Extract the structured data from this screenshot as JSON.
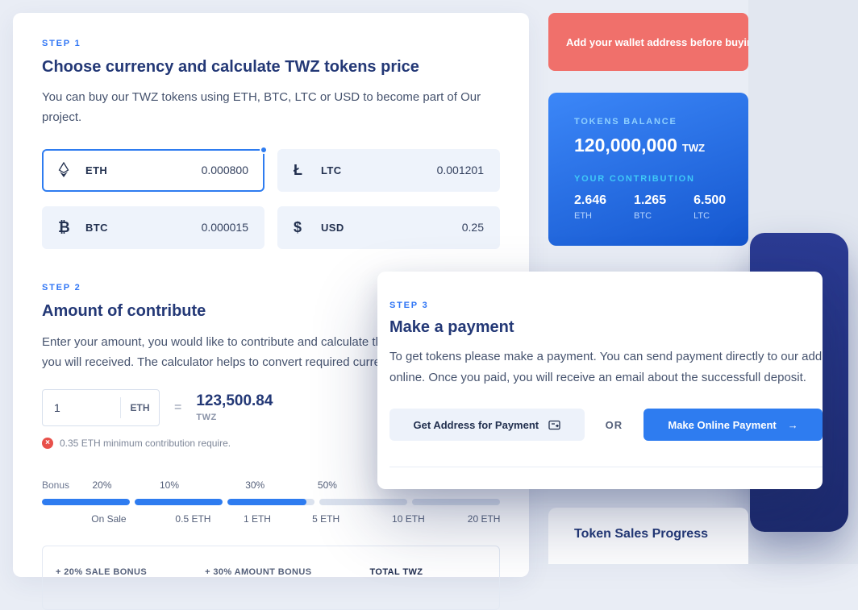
{
  "step1": {
    "label": "STEP 1",
    "title": "Choose currency and calculate TWZ tokens price",
    "description": "You can buy our TWZ tokens using ETH, BTC, LTC or USD to become part of Our project.",
    "currencies": [
      {
        "code": "ETH",
        "rate": "0.000800",
        "selected": true,
        "glyph": ""
      },
      {
        "code": "LTC",
        "rate": "0.001201",
        "selected": false,
        "glyph": "Ł"
      },
      {
        "code": "BTC",
        "rate": "0.000015",
        "selected": false,
        "glyph": "₿"
      },
      {
        "code": "USD",
        "rate": "0.25",
        "selected": false,
        "glyph": "$"
      }
    ]
  },
  "step2": {
    "label": "STEP 2",
    "title": "Amount of contribute",
    "description_line1": "Enter your amount, you would like to contribute and calculate the amount of TWZ",
    "description_line2": "you will received. The calculator helps to convert required currency into tokens.",
    "amount_value": "1",
    "amount_unit": "ETH",
    "equals_sign": "=",
    "result_value": "123,500.84",
    "result_unit": "TWZ",
    "min_note": "0.35 ETH minimum contribution require.",
    "bonus": {
      "label": "Bonus",
      "tiers": [
        "20%",
        "10%",
        "30%",
        "50%"
      ],
      "segments_fill_percent": [
        100,
        100,
        90,
        0,
        0
      ],
      "milestones": [
        "On Sale",
        "0.5 ETH",
        "1 ETH",
        "5 ETH",
        "10 ETH",
        "20 ETH"
      ]
    },
    "summary": {
      "sale_bonus": "+ 20% SALE BONUS",
      "amount_bonus": "+ 30% AMOUNT BONUS",
      "total_label": "TOTAL TWZ"
    }
  },
  "step3": {
    "label": "STEP 3",
    "title": "Make a payment",
    "description_line1": "To get tokens please make a payment. You can send payment directly to our address",
    "description_line2": "online. Once you paid, you will receive an email about the successfull deposit.",
    "get_address_button": "Get Address for Payment",
    "or_label": "OR",
    "pay_button": "Make Online Payment",
    "pay_button_arrow": "→"
  },
  "sidebar": {
    "alert_text": "Add your wallet address before buying",
    "balance": {
      "label": "TOKENS BALANCE",
      "value": "120,000,000",
      "unit": "TWZ",
      "contribution_label": "YOUR CONTRIBUTION",
      "contributions": [
        {
          "value": "2.646",
          "unit": "ETH"
        },
        {
          "value": "1.265",
          "unit": "BTC"
        },
        {
          "value": "6.500",
          "unit": "LTC"
        }
      ]
    },
    "sales_progress_title": "Token Sales Progress"
  },
  "colors": {
    "accent_blue": "#2e7cf0",
    "alert_red": "#f0706b",
    "heading_navy": "#233876"
  }
}
